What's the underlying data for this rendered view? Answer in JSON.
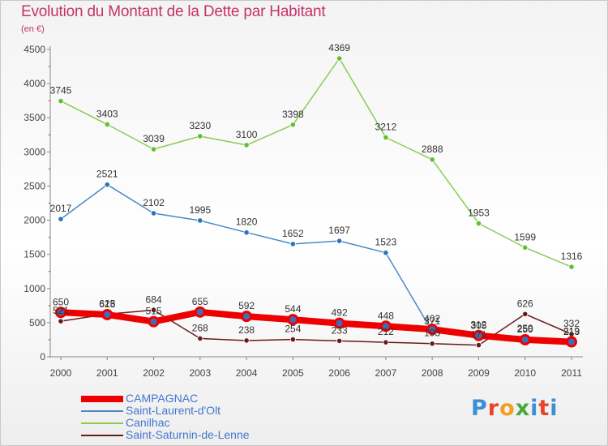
{
  "title": "Evolution du Montant de la Dette par Habitant",
  "unit": "(en €)",
  "logo": {
    "text": "Proxiti",
    "letter_colors": [
      "#3b8fd6",
      "#e8442c",
      "#f0a023",
      "#4aa83c",
      "#3b8fd6",
      "#e8442c",
      "#3b8fd6"
    ]
  },
  "chart_data": {
    "type": "line",
    "x": [
      "2000",
      "2001",
      "2002",
      "2003",
      "2004",
      "2005",
      "2006",
      "2007",
      "2008",
      "2009",
      "2010",
      "2011"
    ],
    "ylim": [
      0,
      4500
    ],
    "yticks": [
      0,
      500,
      1000,
      1500,
      2000,
      2500,
      3000,
      3500,
      4000,
      4500
    ],
    "grid": false,
    "legend": "bottom-left",
    "series": [
      {
        "name": "Saint-Saturnin-de-Lenne",
        "color": "#6b1a1a",
        "values": [
          521,
          625,
          684,
          268,
          238,
          254,
          233,
          212,
          193,
          171,
          626,
          332
        ]
      },
      {
        "name": "Canilhac",
        "color": "#88cc55",
        "values": [
          3745,
          3403,
          3039,
          3230,
          3100,
          3398,
          4369,
          3212,
          2888,
          1953,
          1599,
          1316
        ]
      },
      {
        "name": "Saint-Laurent-d'Olt",
        "color": "#4a88c8",
        "values": [
          2017,
          2521,
          2102,
          1995,
          1820,
          1652,
          1697,
          1523,
          371,
          305,
          259,
          213
        ]
      },
      {
        "name": "CAMPAGNAC",
        "color": "#ee0000",
        "values": [
          650,
          618,
          515,
          655,
          592,
          544,
          492,
          448,
          402,
          312,
          250,
          219
        ]
      }
    ],
    "legend_order": [
      "CAMPAGNAC",
      "Saint-Laurent-d'Olt",
      "Canilhac",
      "Saint-Saturnin-de-Lenne"
    ]
  }
}
